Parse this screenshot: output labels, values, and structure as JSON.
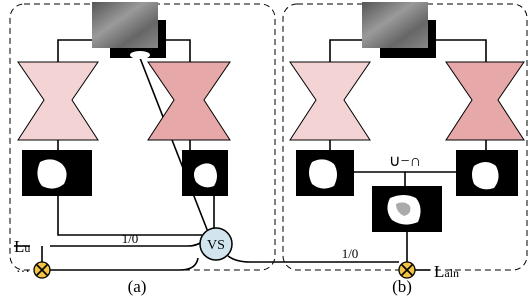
{
  "panel_a": {
    "label": "(a)",
    "vs": "VS",
    "loss": {
      "base": "L",
      "sub": "u"
    },
    "dots": "···",
    "switch": "1/0"
  },
  "panel_b": {
    "label": "(b)",
    "operation": "∪−∩",
    "switch": "1/0",
    "loss": {
      "base": "L",
      "sub": "aln"
    }
  }
}
